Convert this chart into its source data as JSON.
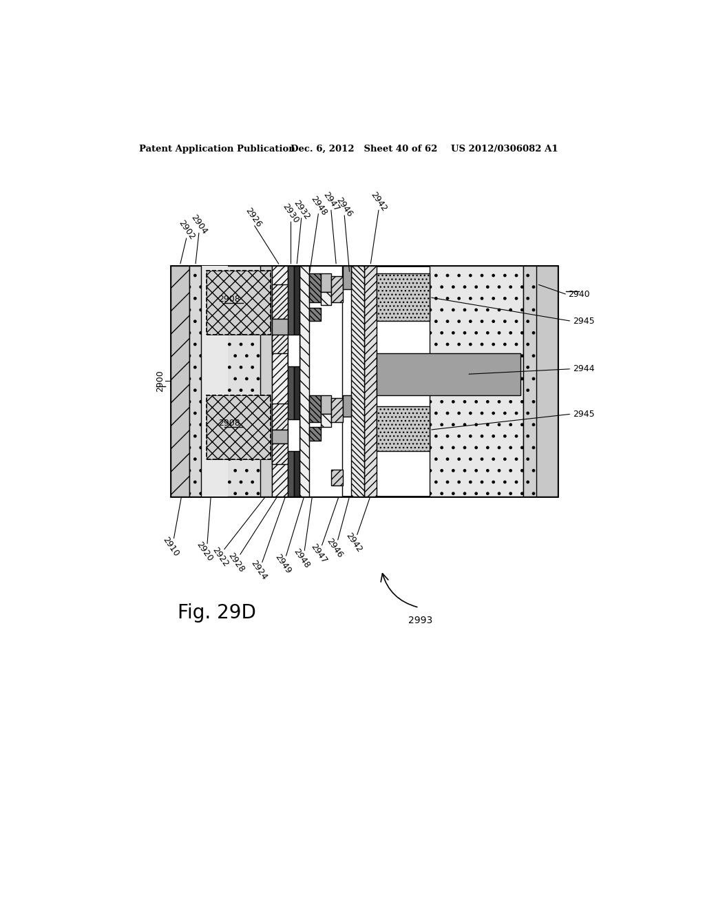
{
  "title_left": "Patent Application Publication",
  "title_mid": "Dec. 6, 2012   Sheet 40 of 62",
  "title_right": "US 2012/0306082 A1",
  "fig_label": "Fig. 29D",
  "bg_color": "#ffffff",
  "ref_label": "2993"
}
